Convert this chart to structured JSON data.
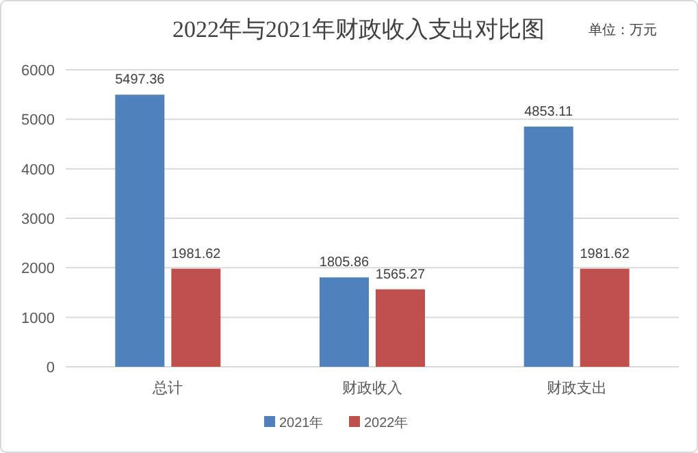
{
  "chart_data": {
    "type": "bar",
    "title": "2022年与2021年财政收入支出对比图",
    "annotations": [
      "单位：万元"
    ],
    "categories": [
      "总计",
      "财政收入",
      "财政支出"
    ],
    "series": [
      {
        "name": "2021年",
        "color": "#4f81bd",
        "values": [
          5497.36,
          1805.86,
          4853.11
        ]
      },
      {
        "name": "2022年",
        "color": "#c0504d",
        "values": [
          1981.62,
          1565.27,
          1981.62
        ]
      }
    ],
    "ylim": [
      0,
      6000
    ],
    "yticks": [
      0,
      1000,
      2000,
      3000,
      4000,
      5000,
      6000
    ],
    "grid": "y",
    "legend": "bottom",
    "data_labels": true
  }
}
